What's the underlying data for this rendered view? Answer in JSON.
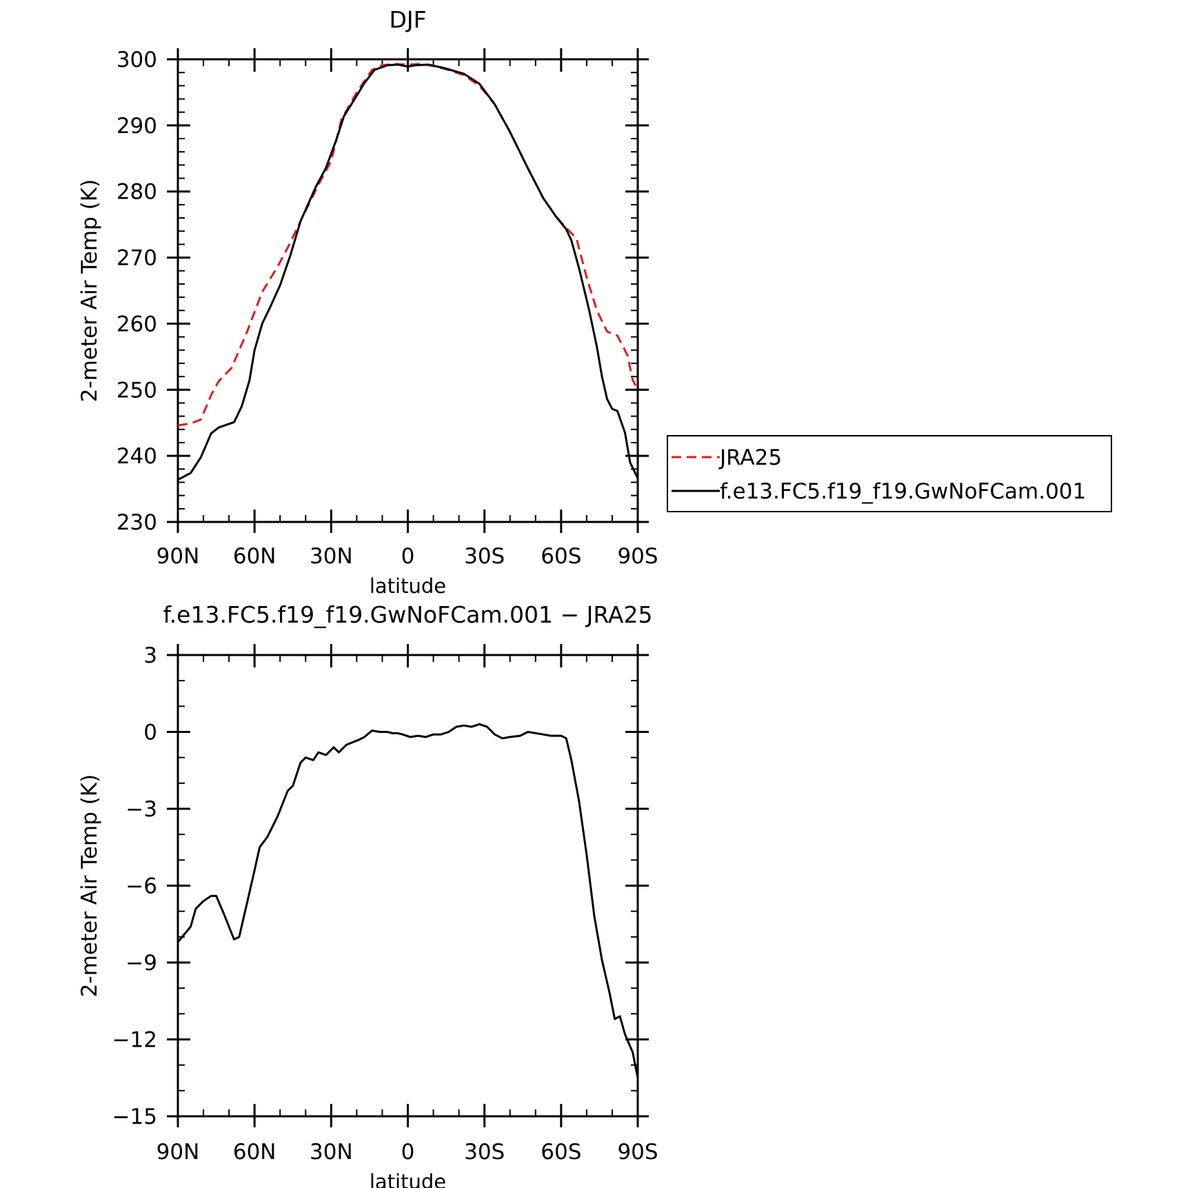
{
  "chart_data": [
    {
      "type": "line",
      "title": "DJF",
      "xlabel": "latitude",
      "ylabel": "2-meter Air Temp (K)",
      "xlim": [
        -90,
        90
      ],
      "ylim": [
        230,
        300
      ],
      "x_ticks": [
        {
          "value": -90,
          "label": "90N"
        },
        {
          "value": -60,
          "label": "60N"
        },
        {
          "value": -30,
          "label": "30N"
        },
        {
          "value": 0,
          "label": "0"
        },
        {
          "value": 30,
          "label": "30S"
        },
        {
          "value": 60,
          "label": "60S"
        },
        {
          "value": 90,
          "label": "90S"
        }
      ],
      "y_ticks": [
        {
          "value": 230,
          "label": "230"
        },
        {
          "value": 240,
          "label": "240"
        },
        {
          "value": 250,
          "label": "250"
        },
        {
          "value": 260,
          "label": "260"
        },
        {
          "value": 270,
          "label": "270"
        },
        {
          "value": 280,
          "label": "280"
        },
        {
          "value": 290,
          "label": "290"
        },
        {
          "value": 300,
          "label": "300"
        }
      ],
      "legend_position": "right-middle",
      "series": [
        {
          "name": "JRA25",
          "color": "#e41a1c",
          "style": "dashed",
          "points": [
            [
              -90,
              244.6
            ],
            [
              -85,
              244.9
            ],
            [
              -81,
              245.5
            ],
            [
              -77,
              249.2
            ],
            [
              -74,
              251.3
            ],
            [
              -69,
              253.3
            ],
            [
              -63,
              258.7
            ],
            [
              -57,
              264.8
            ],
            [
              -51,
              268.6
            ],
            [
              -47,
              271.5
            ],
            [
              -40,
              277.1
            ],
            [
              -35,
              281.0
            ],
            [
              -30,
              284.6
            ],
            [
              -26,
              290.9
            ],
            [
              -20,
              295.0
            ],
            [
              -14,
              298.4
            ],
            [
              -10,
              299.1
            ],
            [
              -5,
              299.3
            ],
            [
              0,
              299.2
            ],
            [
              5,
              299.3
            ],
            [
              10,
              299.0
            ],
            [
              15,
              298.5
            ],
            [
              22,
              297.6
            ],
            [
              28,
              296.0
            ],
            [
              34,
              293.2
            ],
            [
              40,
              289.0
            ],
            [
              47,
              283.5
            ],
            [
              53,
              279.0
            ],
            [
              58,
              276.2
            ],
            [
              62,
              274.5
            ],
            [
              66,
              272.9
            ],
            [
              70,
              267.0
            ],
            [
              74,
              262.0
            ],
            [
              78,
              258.8
            ],
            [
              82,
              258.2
            ],
            [
              86,
              255.2
            ],
            [
              88,
              251.5
            ],
            [
              90,
              250.0
            ]
          ]
        },
        {
          "name": "f.e13.FC5.f19_f19.GwNoFCam.001",
          "color": "#000000",
          "style": "solid",
          "points": [
            [
              -90,
              236.4
            ],
            [
              -85,
              237.4
            ],
            [
              -81,
              239.8
            ],
            [
              -77,
              243.4
            ],
            [
              -74,
              244.3
            ],
            [
              -68,
              245.1
            ],
            [
              -65,
              247.5
            ],
            [
              -62,
              251.4
            ],
            [
              -60,
              256.0
            ],
            [
              -57,
              260.0
            ],
            [
              -54,
              262.4
            ],
            [
              -50,
              265.8
            ],
            [
              -46,
              270.3
            ],
            [
              -42,
              275.5
            ],
            [
              -36,
              280.7
            ],
            [
              -32,
              283.6
            ],
            [
              -28,
              287.8
            ],
            [
              -25,
              291.4
            ],
            [
              -20,
              294.5
            ],
            [
              -17,
              296.4
            ],
            [
              -13,
              298.4
            ],
            [
              -8,
              299.1
            ],
            [
              -4,
              299.2
            ],
            [
              0,
              298.9
            ],
            [
              3,
              299.1
            ],
            [
              8,
              299.2
            ],
            [
              14,
              298.7
            ],
            [
              22,
              297.8
            ],
            [
              28,
              296.3
            ],
            [
              34,
              293.2
            ],
            [
              40,
              289.0
            ],
            [
              47,
              283.5
            ],
            [
              53,
              279.0
            ],
            [
              58,
              276.2
            ],
            [
              62,
              274.3
            ],
            [
              64,
              272.6
            ],
            [
              67,
              268.4
            ],
            [
              71,
              262.0
            ],
            [
              74,
              256.5
            ],
            [
              76,
              252.0
            ],
            [
              78,
              248.6
            ],
            [
              80,
              247.1
            ],
            [
              82,
              246.8
            ],
            [
              85,
              243.5
            ],
            [
              87,
              239.0
            ],
            [
              90,
              236.6
            ]
          ]
        }
      ]
    },
    {
      "type": "line",
      "title": "f.e13.FC5.f19_f19.GwNoFCam.001 − JRA25",
      "xlabel": "latitude",
      "ylabel": "2-meter Air Temp (K)",
      "xlim": [
        -90,
        90
      ],
      "ylim": [
        -15,
        3
      ],
      "x_ticks": [
        {
          "value": -90,
          "label": "90N"
        },
        {
          "value": -60,
          "label": "60N"
        },
        {
          "value": -30,
          "label": "30N"
        },
        {
          "value": 0,
          "label": "0"
        },
        {
          "value": 30,
          "label": "30S"
        },
        {
          "value": 60,
          "label": "60S"
        },
        {
          "value": 90,
          "label": "90S"
        }
      ],
      "y_ticks": [
        {
          "value": 3,
          "label": "3"
        },
        {
          "value": 0,
          "label": "0"
        },
        {
          "value": -3,
          "label": "−3"
        },
        {
          "value": -6,
          "label": "−6"
        },
        {
          "value": -9,
          "label": "−9"
        },
        {
          "value": -12,
          "label": "−12"
        },
        {
          "value": -15,
          "label": "−15"
        }
      ],
      "series": [
        {
          "color": "#000000",
          "style": "solid",
          "points": [
            [
              -90,
              -8.2
            ],
            [
              -85,
              -7.6
            ],
            [
              -83,
              -6.9
            ],
            [
              -80,
              -6.6
            ],
            [
              -77,
              -6.4
            ],
            [
              -75,
              -6.4
            ],
            [
              -72,
              -7.1
            ],
            [
              -68,
              -8.1
            ],
            [
              -66,
              -8.0
            ],
            [
              -63,
              -6.7
            ],
            [
              -60,
              -5.4
            ],
            [
              -58,
              -4.5
            ],
            [
              -55,
              -4.1
            ],
            [
              -51,
              -3.3
            ],
            [
              -47,
              -2.3
            ],
            [
              -45,
              -2.1
            ],
            [
              -42,
              -1.2
            ],
            [
              -40,
              -1.0
            ],
            [
              -37,
              -1.1
            ],
            [
              -35,
              -0.8
            ],
            [
              -32,
              -0.9
            ],
            [
              -29,
              -0.6
            ],
            [
              -27,
              -0.8
            ],
            [
              -24,
              -0.5
            ],
            [
              -19,
              -0.3
            ],
            [
              -17,
              -0.2
            ],
            [
              -14,
              0.05
            ],
            [
              -11,
              0.0
            ],
            [
              -8,
              0.0
            ],
            [
              -6,
              -0.05
            ],
            [
              -4,
              -0.05
            ],
            [
              -2,
              -0.1
            ],
            [
              1,
              -0.2
            ],
            [
              4,
              -0.15
            ],
            [
              7,
              -0.2
            ],
            [
              10,
              -0.1
            ],
            [
              13,
              -0.1
            ],
            [
              16,
              0.0
            ],
            [
              19,
              0.2
            ],
            [
              22,
              0.25
            ],
            [
              25,
              0.2
            ],
            [
              28,
              0.3
            ],
            [
              31,
              0.2
            ],
            [
              34,
              -0.1
            ],
            [
              37,
              -0.25
            ],
            [
              40,
              -0.2
            ],
            [
              44,
              -0.15
            ],
            [
              47,
              0.0
            ],
            [
              50,
              -0.05
            ],
            [
              53,
              -0.1
            ],
            [
              56,
              -0.15
            ],
            [
              60,
              -0.15
            ],
            [
              62,
              -0.25
            ],
            [
              64,
              -1.1
            ],
            [
              67,
              -2.7
            ],
            [
              70,
              -4.8
            ],
            [
              73,
              -7.2
            ],
            [
              76,
              -8.9
            ],
            [
              79,
              -10.2
            ],
            [
              81,
              -11.2
            ],
            [
              83,
              -11.1
            ],
            [
              85,
              -11.8
            ],
            [
              88,
              -12.5
            ],
            [
              90,
              -13.5
            ]
          ]
        }
      ]
    }
  ]
}
